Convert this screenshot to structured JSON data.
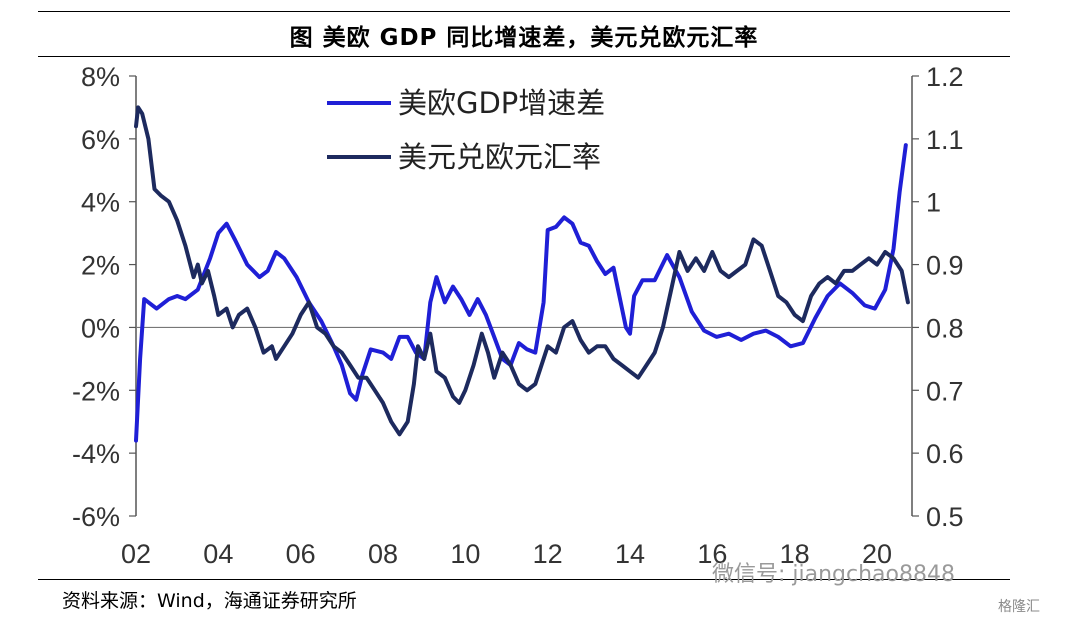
{
  "figure": {
    "title": "图  美欧 GDP 同比增速差，美元兑欧元汇率",
    "source": "资料来源：Wind，海通证券研究所",
    "watermark": "微信号: jiangchao8848",
    "watermark2": "格隆汇"
  },
  "chart_data": {
    "type": "line",
    "x_ticks": [
      "02",
      "04",
      "06",
      "08",
      "10",
      "12",
      "14",
      "16",
      "18",
      "20"
    ],
    "x_range": [
      2002.0,
      2020.85
    ],
    "y_left_ticks": [
      "8%",
      "6%",
      "4%",
      "2%",
      "0%",
      "-2%",
      "-4%",
      "-6%"
    ],
    "y_left_range": [
      -6,
      8
    ],
    "y_right_ticks": [
      "1.2",
      "1.1",
      "1",
      "0.9",
      "0.8",
      "0.7",
      "0.6",
      "0.5"
    ],
    "y_right_range": [
      0.5,
      1.2
    ],
    "legend_position": "top-center",
    "colors": {
      "gdp": "#1f1fd6",
      "fx": "#1d2a5e"
    },
    "series": [
      {
        "name": "美欧GDP增速差",
        "axis": "left",
        "color": "#1f1fd6",
        "points": [
          [
            2002.0,
            -3.6
          ],
          [
            2002.1,
            -1.0
          ],
          [
            2002.2,
            0.9
          ],
          [
            2002.3,
            0.8
          ],
          [
            2002.5,
            0.6
          ],
          [
            2002.8,
            0.9
          ],
          [
            2003.0,
            1.0
          ],
          [
            2003.2,
            0.9
          ],
          [
            2003.5,
            1.2
          ],
          [
            2003.8,
            2.2
          ],
          [
            2004.0,
            3.0
          ],
          [
            2004.2,
            3.3
          ],
          [
            2004.4,
            2.8
          ],
          [
            2004.7,
            2.0
          ],
          [
            2005.0,
            1.6
          ],
          [
            2005.2,
            1.8
          ],
          [
            2005.4,
            2.4
          ],
          [
            2005.6,
            2.2
          ],
          [
            2005.9,
            1.6
          ],
          [
            2006.2,
            0.8
          ],
          [
            2006.5,
            0.2
          ],
          [
            2006.8,
            -0.6
          ],
          [
            2007.0,
            -1.2
          ],
          [
            2007.2,
            -2.1
          ],
          [
            2007.35,
            -2.3
          ],
          [
            2007.5,
            -1.5
          ],
          [
            2007.7,
            -0.7
          ],
          [
            2008.0,
            -0.8
          ],
          [
            2008.2,
            -1.0
          ],
          [
            2008.4,
            -0.3
          ],
          [
            2008.6,
            -0.3
          ],
          [
            2008.8,
            -0.8
          ],
          [
            2009.0,
            -1.0
          ],
          [
            2009.15,
            0.8
          ],
          [
            2009.3,
            1.6
          ],
          [
            2009.5,
            0.8
          ],
          [
            2009.7,
            1.3
          ],
          [
            2009.9,
            0.9
          ],
          [
            2010.1,
            0.4
          ],
          [
            2010.3,
            0.9
          ],
          [
            2010.5,
            0.4
          ],
          [
            2010.7,
            -0.3
          ],
          [
            2010.9,
            -1.0
          ],
          [
            2011.1,
            -1.2
          ],
          [
            2011.3,
            -0.5
          ],
          [
            2011.5,
            -0.7
          ],
          [
            2011.7,
            -0.8
          ],
          [
            2011.9,
            0.8
          ],
          [
            2012.0,
            3.1
          ],
          [
            2012.2,
            3.2
          ],
          [
            2012.4,
            3.5
          ],
          [
            2012.6,
            3.3
          ],
          [
            2012.8,
            2.7
          ],
          [
            2013.0,
            2.6
          ],
          [
            2013.2,
            2.1
          ],
          [
            2013.4,
            1.7
          ],
          [
            2013.6,
            1.9
          ],
          [
            2013.9,
            0.0
          ],
          [
            2014.0,
            -0.2
          ],
          [
            2014.1,
            1.0
          ],
          [
            2014.3,
            1.5
          ],
          [
            2014.6,
            1.5
          ],
          [
            2014.9,
            2.3
          ],
          [
            2015.2,
            1.6
          ],
          [
            2015.5,
            0.5
          ],
          [
            2015.8,
            -0.1
          ],
          [
            2016.1,
            -0.3
          ],
          [
            2016.4,
            -0.2
          ],
          [
            2016.7,
            -0.4
          ],
          [
            2017.0,
            -0.2
          ],
          [
            2017.3,
            -0.1
          ],
          [
            2017.6,
            -0.3
          ],
          [
            2017.9,
            -0.6
          ],
          [
            2018.2,
            -0.5
          ],
          [
            2018.5,
            0.3
          ],
          [
            2018.8,
            1.0
          ],
          [
            2019.1,
            1.4
          ],
          [
            2019.4,
            1.1
          ],
          [
            2019.7,
            0.7
          ],
          [
            2019.95,
            0.6
          ],
          [
            2020.2,
            1.2
          ],
          [
            2020.4,
            2.5
          ],
          [
            2020.55,
            4.3
          ],
          [
            2020.7,
            5.8
          ]
        ]
      },
      {
        "name": "美元兑欧元汇率",
        "axis": "right",
        "color": "#1d2a5e",
        "points": [
          [
            2002.0,
            1.12
          ],
          [
            2002.05,
            1.15
          ],
          [
            2002.15,
            1.14
          ],
          [
            2002.3,
            1.1
          ],
          [
            2002.45,
            1.02
          ],
          [
            2002.6,
            1.01
          ],
          [
            2002.8,
            1.0
          ],
          [
            2003.0,
            0.97
          ],
          [
            2003.2,
            0.93
          ],
          [
            2003.4,
            0.88
          ],
          [
            2003.5,
            0.9
          ],
          [
            2003.6,
            0.87
          ],
          [
            2003.75,
            0.89
          ],
          [
            2003.9,
            0.85
          ],
          [
            2004.0,
            0.82
          ],
          [
            2004.2,
            0.83
          ],
          [
            2004.35,
            0.8
          ],
          [
            2004.5,
            0.82
          ],
          [
            2004.7,
            0.83
          ],
          [
            2004.9,
            0.8
          ],
          [
            2005.1,
            0.76
          ],
          [
            2005.3,
            0.77
          ],
          [
            2005.4,
            0.75
          ],
          [
            2005.6,
            0.77
          ],
          [
            2005.8,
            0.79
          ],
          [
            2006.0,
            0.82
          ],
          [
            2006.2,
            0.84
          ],
          [
            2006.4,
            0.8
          ],
          [
            2006.6,
            0.79
          ],
          [
            2006.8,
            0.77
          ],
          [
            2007.0,
            0.76
          ],
          [
            2007.2,
            0.74
          ],
          [
            2007.4,
            0.72
          ],
          [
            2007.6,
            0.72
          ],
          [
            2007.8,
            0.7
          ],
          [
            2008.0,
            0.68
          ],
          [
            2008.2,
            0.65
          ],
          [
            2008.4,
            0.63
          ],
          [
            2008.6,
            0.65
          ],
          [
            2008.75,
            0.71
          ],
          [
            2008.85,
            0.77
          ],
          [
            2009.0,
            0.75
          ],
          [
            2009.15,
            0.79
          ],
          [
            2009.3,
            0.73
          ],
          [
            2009.5,
            0.72
          ],
          [
            2009.7,
            0.69
          ],
          [
            2009.85,
            0.68
          ],
          [
            2010.0,
            0.7
          ],
          [
            2010.2,
            0.74
          ],
          [
            2010.4,
            0.79
          ],
          [
            2010.55,
            0.76
          ],
          [
            2010.7,
            0.72
          ],
          [
            2010.9,
            0.76
          ],
          [
            2011.1,
            0.74
          ],
          [
            2011.3,
            0.71
          ],
          [
            2011.5,
            0.7
          ],
          [
            2011.7,
            0.71
          ],
          [
            2011.85,
            0.74
          ],
          [
            2012.0,
            0.77
          ],
          [
            2012.2,
            0.76
          ],
          [
            2012.4,
            0.8
          ],
          [
            2012.6,
            0.81
          ],
          [
            2012.8,
            0.78
          ],
          [
            2013.0,
            0.76
          ],
          [
            2013.2,
            0.77
          ],
          [
            2013.4,
            0.77
          ],
          [
            2013.6,
            0.75
          ],
          [
            2013.8,
            0.74
          ],
          [
            2014.0,
            0.73
          ],
          [
            2014.2,
            0.72
          ],
          [
            2014.4,
            0.74
          ],
          [
            2014.6,
            0.76
          ],
          [
            2014.8,
            0.8
          ],
          [
            2015.0,
            0.86
          ],
          [
            2015.2,
            0.92
          ],
          [
            2015.4,
            0.89
          ],
          [
            2015.6,
            0.91
          ],
          [
            2015.8,
            0.89
          ],
          [
            2016.0,
            0.92
          ],
          [
            2016.2,
            0.89
          ],
          [
            2016.4,
            0.88
          ],
          [
            2016.6,
            0.89
          ],
          [
            2016.8,
            0.9
          ],
          [
            2017.0,
            0.94
          ],
          [
            2017.2,
            0.93
          ],
          [
            2017.4,
            0.89
          ],
          [
            2017.6,
            0.85
          ],
          [
            2017.8,
            0.84
          ],
          [
            2018.0,
            0.82
          ],
          [
            2018.2,
            0.81
          ],
          [
            2018.4,
            0.85
          ],
          [
            2018.6,
            0.87
          ],
          [
            2018.8,
            0.88
          ],
          [
            2019.0,
            0.87
          ],
          [
            2019.2,
            0.89
          ],
          [
            2019.4,
            0.89
          ],
          [
            2019.6,
            0.9
          ],
          [
            2019.8,
            0.91
          ],
          [
            2020.0,
            0.9
          ],
          [
            2020.2,
            0.92
          ],
          [
            2020.4,
            0.91
          ],
          [
            2020.6,
            0.89
          ],
          [
            2020.75,
            0.84
          ]
        ]
      }
    ]
  }
}
